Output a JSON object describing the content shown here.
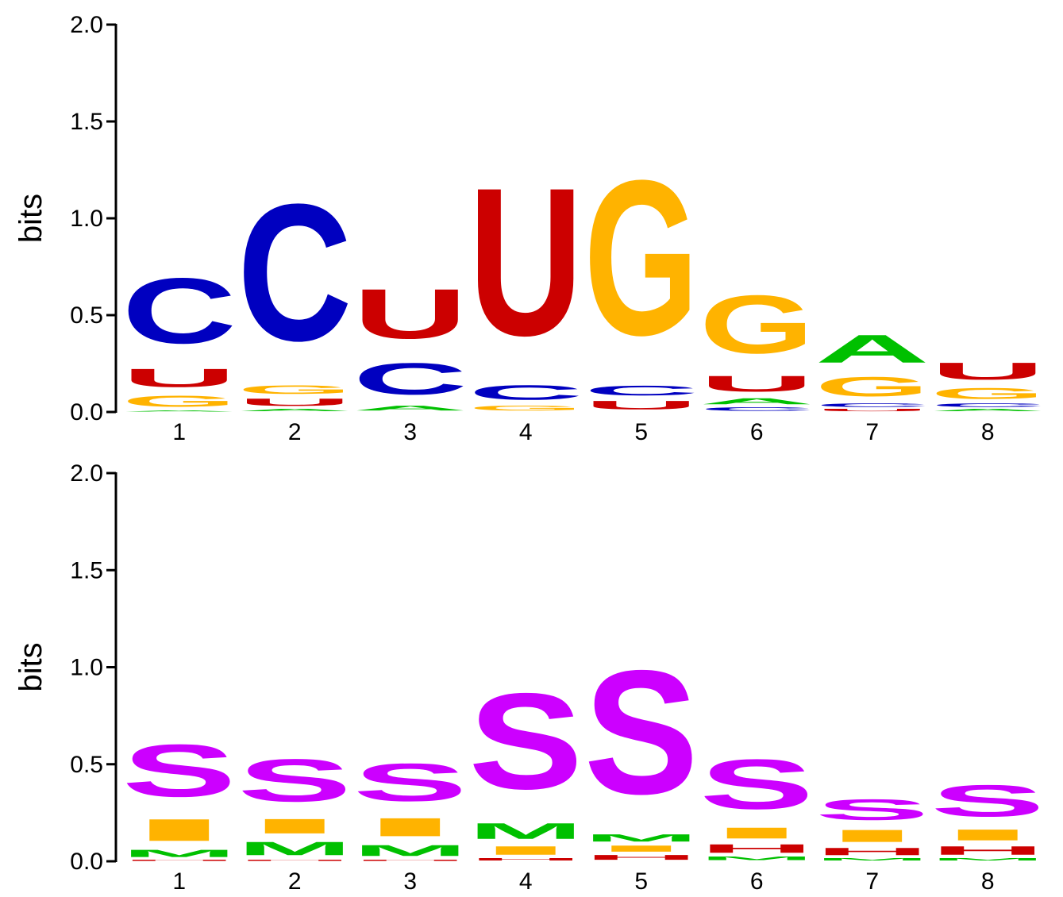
{
  "chart_data": [
    {
      "type": "sequence-logo",
      "ylabel": "bits",
      "ylim": [
        0,
        2.0
      ],
      "yticks": [
        "0.0",
        "0.5",
        "1.0",
        "1.5",
        "2.0"
      ],
      "positions": [
        "1",
        "2",
        "3",
        "4",
        "5",
        "6",
        "7",
        "8"
      ],
      "colors": {
        "A": "#00c000",
        "C": "#0000c0",
        "G": "#ffb300",
        "U": "#cc0000"
      },
      "stacks": [
        [
          {
            "letter": "A",
            "bits": 0.01
          },
          {
            "letter": "G",
            "bits": 0.09
          },
          {
            "letter": "U",
            "bits": 0.15
          },
          {
            "letter": "C",
            "bits": 0.54
          }
        ],
        [
          {
            "letter": "A",
            "bits": 0.02
          },
          {
            "letter": "U",
            "bits": 0.06
          },
          {
            "letter": "G",
            "bits": 0.07
          },
          {
            "letter": "C",
            "bits": 1.13
          }
        ],
        [
          {
            "letter": "A",
            "bits": 0.04
          },
          {
            "letter": "C",
            "bits": 0.26
          },
          {
            "letter": "U",
            "bits": 0.41
          }
        ],
        [
          {
            "letter": "G",
            "bits": 0.04
          },
          {
            "letter": "C",
            "bits": 0.12
          },
          {
            "letter": "U",
            "bits": 1.22
          }
        ],
        [
          {
            "letter": "U",
            "bits": 0.07
          },
          {
            "letter": "C",
            "bits": 0.08
          },
          {
            "letter": "G",
            "bits": 1.28
          }
        ],
        [
          {
            "letter": "C",
            "bits": 0.03
          },
          {
            "letter": "A",
            "bits": 0.05
          },
          {
            "letter": "U",
            "bits": 0.13
          },
          {
            "letter": "G",
            "bits": 0.48
          }
        ],
        [
          {
            "letter": "U",
            "bits": 0.02
          },
          {
            "letter": "C",
            "bits": 0.03
          },
          {
            "letter": "G",
            "bits": 0.16
          },
          {
            "letter": "A",
            "bits": 0.23
          }
        ],
        [
          {
            "letter": "A",
            "bits": 0.02
          },
          {
            "letter": "C",
            "bits": 0.03
          },
          {
            "letter": "G",
            "bits": 0.09
          },
          {
            "letter": "U",
            "bits": 0.14
          }
        ]
      ]
    },
    {
      "type": "sequence-logo",
      "ylabel": "bits",
      "ylim": [
        0,
        2.0
      ],
      "yticks": [
        "0.0",
        "0.5",
        "1.0",
        "1.5",
        "2.0"
      ],
      "positions": [
        "1",
        "2",
        "3",
        "4",
        "5",
        "6",
        "7",
        "8"
      ],
      "colors": {
        "H": "#cc0000",
        "M": "#00c000",
        "I": "#ffb300",
        "S": "#cc00ff"
      },
      "stacks": [
        [
          {
            "letter": "H",
            "bits": 0.01
          },
          {
            "letter": "M",
            "bits": 0.06
          },
          {
            "letter": "I",
            "bits": 0.18
          },
          {
            "letter": "S",
            "bits": 0.43
          }
        ],
        [
          {
            "letter": "H",
            "bits": 0.01
          },
          {
            "letter": "M",
            "bits": 0.11
          },
          {
            "letter": "I",
            "bits": 0.12
          },
          {
            "letter": "S",
            "bits": 0.35
          }
        ],
        [
          {
            "letter": "H",
            "bits": 0.01
          },
          {
            "letter": "M",
            "bits": 0.09
          },
          {
            "letter": "I",
            "bits": 0.15
          },
          {
            "letter": "S",
            "bits": 0.31
          }
        ],
        [
          {
            "letter": "H",
            "bits": 0.02
          },
          {
            "letter": "I",
            "bits": 0.07
          },
          {
            "letter": "M",
            "bits": 0.13
          },
          {
            "letter": "S",
            "bits": 0.79
          }
        ],
        [
          {
            "letter": "H",
            "bits": 0.04
          },
          {
            "letter": "I",
            "bits": 0.05
          },
          {
            "letter": "M",
            "bits": 0.06
          },
          {
            "letter": "S",
            "bits": 1.02
          }
        ],
        [
          {
            "letter": "M",
            "bits": 0.03
          },
          {
            "letter": "H",
            "bits": 0.07
          },
          {
            "letter": "I",
            "bits": 0.09
          },
          {
            "letter": "S",
            "bits": 0.41
          }
        ],
        [
          {
            "letter": "M",
            "bits": 0.02
          },
          {
            "letter": "H",
            "bits": 0.06
          },
          {
            "letter": "I",
            "bits": 0.1
          },
          {
            "letter": "S",
            "bits": 0.17
          }
        ],
        [
          {
            "letter": "M",
            "bits": 0.02
          },
          {
            "letter": "H",
            "bits": 0.07
          },
          {
            "letter": "I",
            "bits": 0.09
          },
          {
            "letter": "S",
            "bits": 0.26
          }
        ]
      ]
    }
  ]
}
